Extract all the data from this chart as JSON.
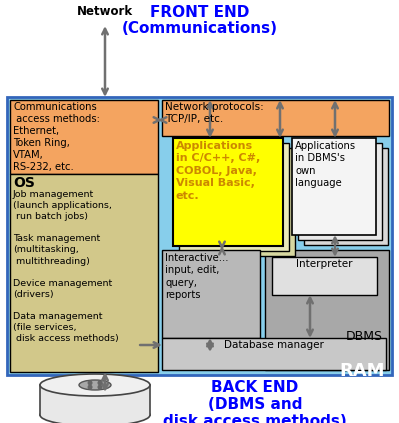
{
  "title_front_end": "FRONT END\n(Communications)",
  "title_back_end": "BACK END\n(DBMS and\ndisk access methods)",
  "label_network": "Network",
  "label_ram": "RAM",
  "label_os": "OS",
  "label_dbms": "DBMS",
  "label_comm_access": "Communications\n access methods:\nEthernet,\nToken Ring,\nVTAM,\nRS-232, etc.",
  "label_net_protocols": "Network protocols:\nTCP/IP, etc.",
  "label_os_details": "Job management\n(launch applications,\n run batch jobs)\n\nTask management\n(multitasking,\n multithreading)\n\nDevice management\n(drivers)\n\nData management\n(file services,\n disk access methods)",
  "label_apps_main": "Applications\nin C/C++, C#,\nCOBOL, Java,\nVisual Basic,\netc.",
  "label_apps_dbms": "Applications\nin DBMS's\nown\nlanguage",
  "label_interactive": "Interactive...\ninput, edit,\nquery,\nreports",
  "label_interpreter": "Interpreter",
  "label_db_manager": "Database manager",
  "bg_outer": "#ffffff",
  "bg_main_box": "#87ceeb",
  "bg_comm_access": "#f4a460",
  "bg_net_protocols": "#f4a460",
  "bg_os_section": "#d2c88a",
  "bg_apps_main_back1": "#d8d8a0",
  "bg_apps_main_back2": "#e8e8b8",
  "bg_apps_main_front": "#ffff00",
  "bg_apps_dbms1": "#d8d8d8",
  "bg_apps_dbms2": "#e8e8e8",
  "bg_apps_dbms3": "#f4f4f4",
  "bg_interactive": "#b8b8b8",
  "bg_dbms_box": "#a8a8a8",
  "bg_interpreter": "#e0e0e0",
  "bg_db_manager": "#c8c8c8",
  "color_front_end_title": "#0000ff",
  "color_back_end_title": "#0000ff",
  "color_ram_label": "#ffffff",
  "color_arrow": "#707070",
  "color_apps_main_text": "#cc8800",
  "figsize": [
    3.99,
    4.23
  ],
  "dpi": 100
}
